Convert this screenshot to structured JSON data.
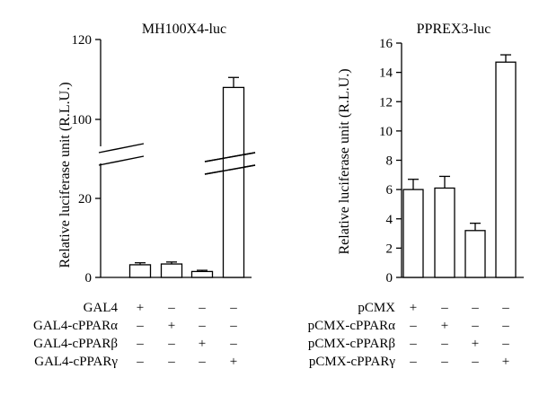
{
  "chart_data": [
    {
      "type": "bar",
      "title": "MH100X4-luc",
      "ylabel": "Relative luciferase unit (R.L.U.)",
      "axis_break": [
        20,
        100
      ],
      "yticks": [
        "120",
        "100",
        "20",
        "0"
      ],
      "ylim": [
        0,
        120
      ],
      "values": [
        3.2,
        3.4,
        1.5,
        108
      ],
      "errors": [
        0.5,
        0.5,
        0.3,
        2.5
      ],
      "condition_rows": [
        {
          "label": "GAL4",
          "signs": [
            "+",
            "–",
            "–",
            "–"
          ]
        },
        {
          "label": "GAL4-cPPARα",
          "signs": [
            "–",
            "+",
            "–",
            "–"
          ]
        },
        {
          "label": "GAL4-cPPARβ",
          "signs": [
            "–",
            "–",
            "+",
            "–"
          ]
        },
        {
          "label": "GAL4-cPPARγ",
          "signs": [
            "–",
            "–",
            "–",
            "+"
          ]
        }
      ]
    },
    {
      "type": "bar",
      "title": "PPREX3-luc",
      "ylabel": "Relative luciferase unit (R.L.U.)",
      "yticks": [
        "0",
        "2",
        "4",
        "6",
        "8",
        "10",
        "12",
        "14",
        "16"
      ],
      "ylim": [
        0,
        16
      ],
      "values": [
        6.0,
        6.1,
        3.2,
        14.7
      ],
      "errors": [
        0.7,
        0.8,
        0.5,
        0.5
      ],
      "condition_rows": [
        {
          "label": "pCMX",
          "signs": [
            "+",
            "–",
            "–",
            "–"
          ]
        },
        {
          "label": "pCMX-cPPARα",
          "signs": [
            "–",
            "+",
            "–",
            "–"
          ]
        },
        {
          "label": "pCMX-cPPARβ",
          "signs": [
            "–",
            "–",
            "+",
            "–"
          ]
        },
        {
          "label": "pCMX-cPPARγ",
          "signs": [
            "–",
            "–",
            "–",
            "+"
          ]
        }
      ]
    }
  ]
}
